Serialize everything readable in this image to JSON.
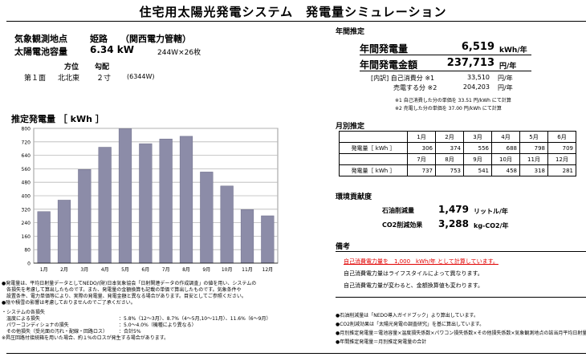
{
  "title": "住宅用太陽光発電システム　発電量シミュレーション",
  "location": {
    "label": "気象観測地点",
    "city": "姫路",
    "company": "（関西電力管轄）"
  },
  "capacity": {
    "label": "太陽電池容量",
    "value": "6.34 kW",
    "detail": "244W×26枚"
  },
  "orientation": {
    "header_dir": "方位",
    "header_tilt": "勾配",
    "row_face": "第１面",
    "row_dir": "北北東",
    "row_tilt": "２寸",
    "row_watts": "(6344W)"
  },
  "annual": {
    "heading": "年間推定",
    "gen_label": "年間発電量",
    "gen_value": "6,519",
    "gen_unit": "kWh/年",
    "amount_label": "年間発電金額",
    "amount_value": "237,713",
    "amount_unit": "円/年",
    "self_label": "[内訳] 自己消費分 ※1",
    "self_value": "33,510",
    "self_unit": "円/年",
    "sell_label": "売電する分 ※2",
    "sell_value": "204,203",
    "sell_unit": "円/年",
    "note1": "※1 自己消費した分の単価を 33.51 円/kWh にて計算",
    "note2": "※2 売電した分の単価を 37.00 円/kWh にて計算"
  },
  "chart_heading": "推定発電量 ［ kWh ］",
  "chart_data": {
    "type": "bar",
    "categories": [
      "1月",
      "2月",
      "3月",
      "4月",
      "5月",
      "6月",
      "7月",
      "8月",
      "9月",
      "10月",
      "11月",
      "12月"
    ],
    "values": [
      306,
      374,
      556,
      688,
      798,
      709,
      737,
      753,
      541,
      458,
      318,
      281
    ],
    "yticks": [
      "0",
      "80",
      "160",
      "240",
      "320",
      "400",
      "480",
      "560",
      "640",
      "720",
      "800"
    ],
    "ylim": [
      0,
      800
    ],
    "grid": true,
    "bar_color": "#8c8ca8"
  },
  "monthly": {
    "heading": "月別推定",
    "row_label": "発電量［ kWh ］",
    "months_a": [
      "1月",
      "2月",
      "3月",
      "4月",
      "5月",
      "6月"
    ],
    "values_a": [
      "306",
      "374",
      "556",
      "688",
      "798",
      "709"
    ],
    "months_b": [
      "7月",
      "8月",
      "9月",
      "10月",
      "11月",
      "12月"
    ],
    "values_b": [
      "737",
      "753",
      "541",
      "458",
      "318",
      "281"
    ]
  },
  "env": {
    "heading": "環境貢献度",
    "oil_label": "石油削減量",
    "oil_value": "1,479",
    "oil_unit": "リットル/年",
    "co2_label": "CO2削減効果",
    "co2_value": "3,288",
    "co2_unit": "kg-CO2/年"
  },
  "remarks": {
    "heading": "備考",
    "line1": "自己消費電力量を　1,000　kWh/年 として計算しています。",
    "line2": "自己消費電力量はライフスタイルによって異なります。",
    "line3": "自己消費電力量が変わると、金額換算値も変わります。"
  },
  "left_notes": {
    "n1": "●発電量は、平均日射量データとしてNEDO/(財)日本気象協会「日射関連データの作成調査」の値を用い、システムの",
    "n2": "　各損失を考慮して算出したものです。また、発電量の金額換算も記載の単価で算出したものです。気象条件や",
    "n3": "　設置条件、電力単価等により、実際の発電量、発電金額と異なる場合があります。目安としてご参照ください。",
    "n4": "●陰や積雪の影響は考慮しておりませんのでご了承ください。",
    "loss_title": "・システムの各損失",
    "loss1_label": "　温度による損失",
    "loss1_value": "：5.8%（12～3月）、8.7%（4～5月,10～11月）、11.6%（6～9月）",
    "loss2_label": "　パワーコンディショナの損失",
    "loss2_value": "：5.0～4.0%（機種により異なる）",
    "loss3_label": "　その他損失（受光面の汚れ・配線・回路ロス）",
    "loss3_value": "：合計5%",
    "n5": "※昇圧回路付接続箱を用いた場合、約１%のロスが発生する場合があります。"
  },
  "right_notes": {
    "r1": "●石油削減量は「NEDO導入ガイドブック」より算出しています。",
    "r2": "●CO2削減効果は「太陽光発電の調査研究」を基に算出しています。",
    "r3": "●月別推定発電量＝電池容量×温度損失係数×パワコン損失係数×その他損失係数×気象観測地点の該当月平均日射量",
    "r4": "●年間推定発電量＝月別推定発電量の合計"
  }
}
